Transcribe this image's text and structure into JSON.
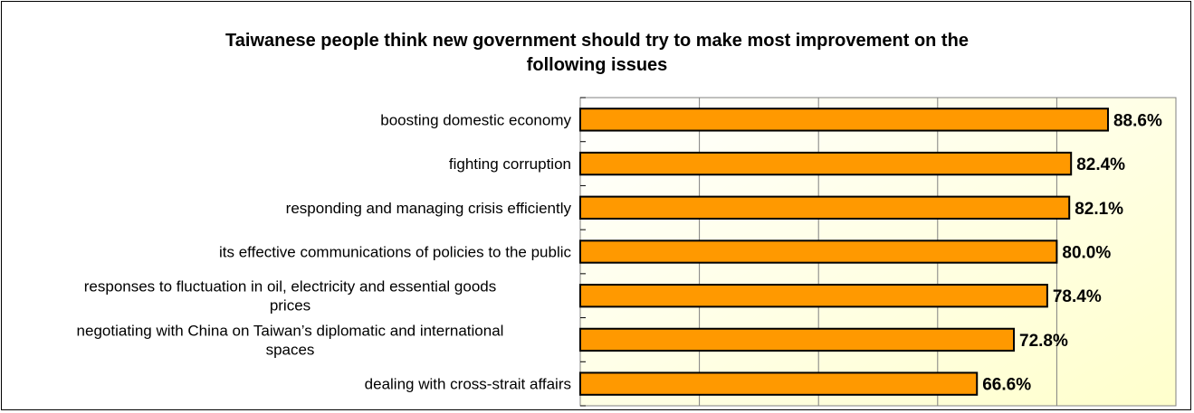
{
  "chart_data": {
    "type": "bar",
    "orientation": "horizontal",
    "title": "Taiwanese people think new government should try to make most improvement on the\nfollowing issues",
    "categories": [
      "boosting domestic economy",
      "fighting corruption ",
      "responding and managing crisis efficiently",
      "its effective communications of policies to the public",
      "responses to fluctuation in oil, electricity and essential goods\nprices",
      "negotiating with China on Taiwan’s diplomatic and international\nspaces",
      "dealing with cross-strait affairs"
    ],
    "values": [
      88.6,
      82.4,
      82.1,
      80.0,
      78.4,
      72.8,
      66.6
    ],
    "value_labels": [
      "88.6%",
      "82.4%",
      "82.1%",
      "80.0%",
      "78.4%",
      "72.8%",
      "66.6%"
    ],
    "xlim": [
      0,
      100
    ],
    "grid": true,
    "legend": false,
    "colors": {
      "bar": "#ff9900",
      "bar_outline": "#000000",
      "plot_bg_from": "#ffffff",
      "plot_bg_to": "#ffffcc",
      "grid": "#808080"
    }
  }
}
